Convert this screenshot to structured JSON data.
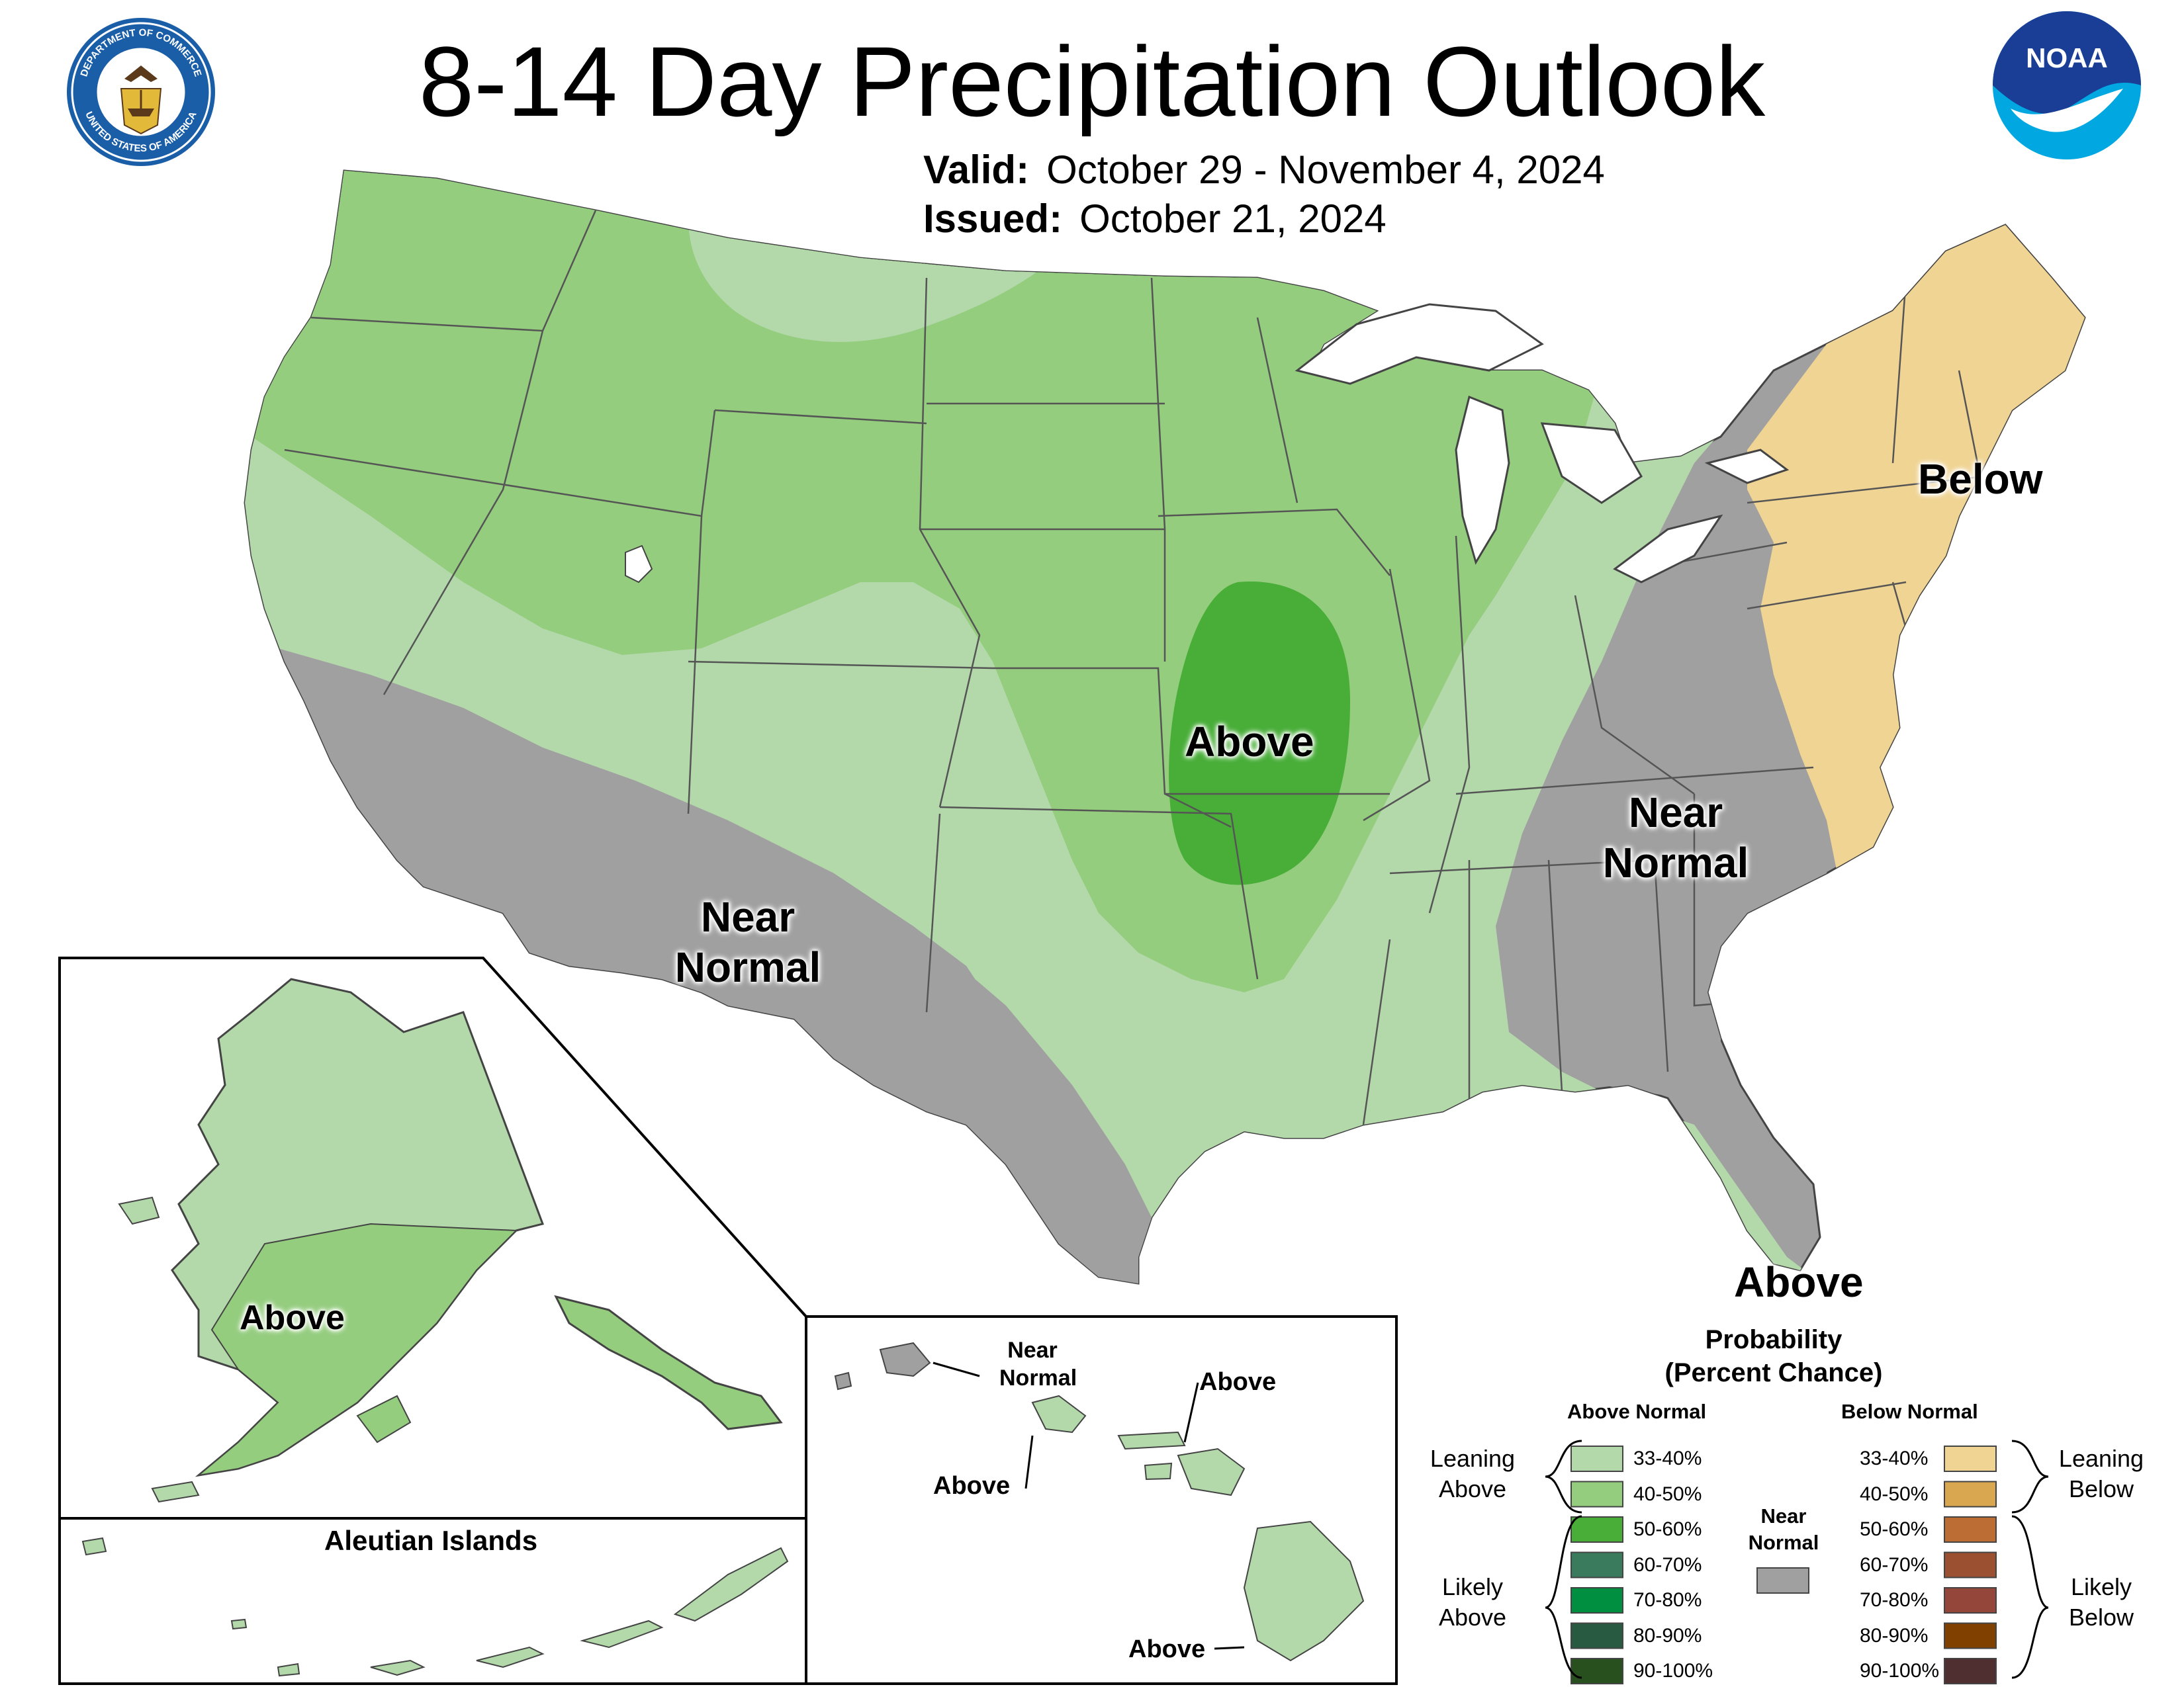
{
  "header": {
    "title": "8-14 Day Precipitation Outlook",
    "valid_label": "Valid:",
    "valid_value": "October 29 - November 4, 2024",
    "issued_label": "Issued:",
    "issued_value": "October 21, 2024"
  },
  "logos": {
    "commerce_seal": {
      "ring_text_top": "DEPARTMENT OF COMMERCE",
      "ring_text_bottom": "UNITED STATES OF AMERICA"
    },
    "noaa": {
      "text": "NOAA"
    }
  },
  "map": {
    "regions": [
      {
        "id": "ne-below",
        "category": "Below",
        "text": "Below"
      },
      {
        "id": "cplains-above",
        "category": "Above",
        "text": "Above"
      },
      {
        "id": "sw-near-normal",
        "category": "Near Normal",
        "text_line1": "Near",
        "text_line2": "Normal"
      },
      {
        "id": "se-near-normal",
        "category": "Near Normal",
        "text_line1": "Near",
        "text_line2": "Normal"
      },
      {
        "id": "florida-above",
        "category": "Above",
        "text": "Above"
      }
    ],
    "inset_alaska": {
      "label": "Above"
    },
    "inset_aleutians": {
      "title": "Aleutian Islands"
    },
    "inset_hawaii": {
      "labels": [
        {
          "id": "kauai",
          "line1": "Near",
          "line2": "Normal"
        },
        {
          "id": "maui",
          "text": "Above"
        },
        {
          "id": "oahu",
          "text": "Above"
        },
        {
          "id": "big-island",
          "text": "Above"
        }
      ]
    }
  },
  "legend": {
    "title_line1": "Probability",
    "title_line2": "(Percent Chance)",
    "above_header": "Above Normal",
    "below_header": "Below Normal",
    "above_items": [
      {
        "label": "33-40%",
        "color": "#b3d9ab"
      },
      {
        "label": "40-50%",
        "color": "#94cd7e"
      },
      {
        "label": "50-60%",
        "color": "#48ae38"
      },
      {
        "label": "60-70%",
        "color": "#3a7b5e"
      },
      {
        "label": "70-80%",
        "color": "#008e40"
      },
      {
        "label": "80-90%",
        "color": "#285a41"
      },
      {
        "label": "90-100%",
        "color": "#28501e"
      }
    ],
    "below_items": [
      {
        "label": "33-40%",
        "color": "#f0d493"
      },
      {
        "label": "40-50%",
        "color": "#d8a750"
      },
      {
        "label": "50-60%",
        "color": "#bb6d33"
      },
      {
        "label": "60-70%",
        "color": "#9b5031"
      },
      {
        "label": "70-80%",
        "color": "#934639"
      },
      {
        "label": "80-90%",
        "color": "#804000"
      },
      {
        "label": "90-100%",
        "color": "#4f2f2f"
      }
    ],
    "near_normal": {
      "line1": "Near",
      "line2": "Normal",
      "color": "#a0a0a0"
    },
    "leaning_above": {
      "line1": "Leaning",
      "line2": "Above"
    },
    "likely_above": {
      "line1": "Likely",
      "line2": "Above"
    },
    "leaning_below": {
      "line1": "Leaning",
      "line2": "Below"
    },
    "likely_below": {
      "line1": "Likely",
      "line2": "Below"
    }
  },
  "colors": {
    "near_normal": "#a0a0a0",
    "above_33_40": "#b3d9ab",
    "above_40_50": "#94cd7e",
    "above_50_60": "#48ae38",
    "below_33_40": "#f0d493",
    "water": "#ffffff",
    "border": "#555555"
  }
}
